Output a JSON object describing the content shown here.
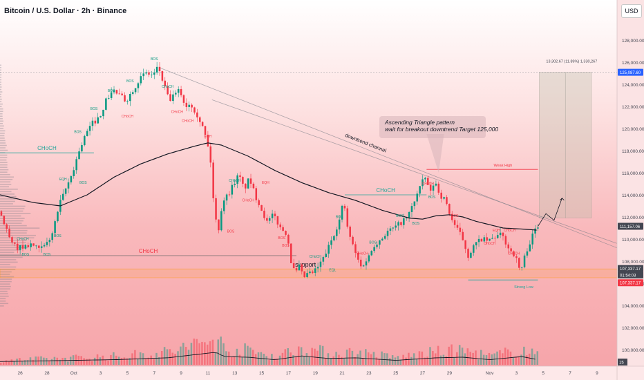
{
  "header": {
    "title": "Bitcoin / U.S. Dollar · 2h · Binance",
    "currency_button": "USD"
  },
  "annotation": {
    "line1": "Ascending Triangle pattern",
    "line2": "wait for breakout downtrend Target 125,000"
  },
  "measure_label": "13,302.67 (11.89%) 1,330,267",
  "colors": {
    "up": "#089981",
    "down": "#f23645",
    "ma": "#131722",
    "bos": "#089981",
    "choch": "#f23645",
    "level_green": "#26a69a",
    "level_red": "#f23645",
    "price_tag": "#434651",
    "target_tag": "#2962ff"
  },
  "chart_data": {
    "type": "candlestick",
    "title": "Bitcoin / U.S. Dollar · 2h · Binance",
    "ylim": [
      98500,
      130000
    ],
    "y_ticks": [
      100000,
      102000,
      104000,
      106000,
      108000,
      110000,
      112000,
      114000,
      116000,
      118000,
      120000,
      122000,
      124000,
      126000,
      128000
    ],
    "y_tick_labels": [
      "100,000.00",
      "102,000.00",
      "104,000.00",
      "106,000.00",
      "108,000.00",
      "110,000.00",
      "112,000.00",
      "114,000.00",
      "116,000.00",
      "118,000.00",
      "120,000.00",
      "122,000.00",
      "124,000.00",
      "126,000.00",
      "128,000.00"
    ],
    "x_labels": [
      "26",
      "28",
      "Oct",
      "3",
      "5",
      "7",
      "9",
      "11",
      "13",
      "15",
      "17",
      "19",
      "21",
      "23",
      "25",
      "27",
      "29",
      "Nov",
      "3",
      "5",
      "7",
      "9"
    ],
    "x_label_days": [
      -4,
      -2,
      0,
      2,
      4,
      6,
      8,
      10,
      12,
      14,
      16,
      18,
      20,
      22,
      24,
      26,
      28,
      31,
      33,
      35,
      37,
      39
    ],
    "x_day_range": [
      -5.5,
      40.5
    ],
    "price_anchors": [
      [
        -5.5,
        112500
      ],
      [
        -5,
        111200
      ],
      [
        -4.5,
        109500
      ],
      [
        -4,
        109200
      ],
      [
        -3,
        109500
      ],
      [
        -2.5,
        109000
      ],
      [
        -2,
        109400
      ],
      [
        -1.5,
        110500
      ],
      [
        -1,
        113000
      ],
      [
        -0.5,
        114500
      ],
      [
        0,
        116000
      ],
      [
        0.5,
        118000
      ],
      [
        1,
        119500
      ],
      [
        1.5,
        120500
      ],
      [
        2,
        121000
      ],
      [
        2.5,
        122500
      ],
      [
        3,
        123500
      ],
      [
        3.5,
        123000
      ],
      [
        4,
        122500
      ],
      [
        4.5,
        123500
      ],
      [
        5,
        124500
      ],
      [
        5.5,
        125000
      ],
      [
        6,
        124800
      ],
      [
        6.4,
        125600
      ],
      [
        6.8,
        124000
      ],
      [
        7.2,
        122500
      ],
      [
        7.6,
        123000
      ],
      [
        8,
        123500
      ],
      [
        8.4,
        122000
      ],
      [
        8.8,
        122300
      ],
      [
        9.2,
        121500
      ],
      [
        9.6,
        120500
      ],
      [
        10,
        119000
      ],
      [
        10.3,
        117000
      ],
      [
        10.6,
        112000
      ],
      [
        10.9,
        111000
      ],
      [
        11.2,
        113500
      ],
      [
        11.6,
        114000
      ],
      [
        12,
        115000
      ],
      [
        12.4,
        115800
      ],
      [
        12.8,
        114500
      ],
      [
        13.2,
        115500
      ],
      [
        13.6,
        114000
      ],
      [
        14,
        113000
      ],
      [
        14.5,
        111500
      ],
      [
        15,
        112200
      ],
      [
        15.5,
        111000
      ],
      [
        16,
        110500
      ],
      [
        16.3,
        108000
      ],
      [
        16.6,
        106800
      ],
      [
        16.9,
        107500
      ],
      [
        17.2,
        106500
      ],
      [
        17.5,
        106800
      ],
      [
        18,
        107000
      ],
      [
        18.5,
        107800
      ],
      [
        19,
        109000
      ],
      [
        19.5,
        110500
      ],
      [
        20,
        112000
      ],
      [
        20.2,
        113700
      ],
      [
        20.5,
        111000
      ],
      [
        21,
        109000
      ],
      [
        21.5,
        107500
      ],
      [
        22,
        108200
      ],
      [
        22.5,
        109500
      ],
      [
        23,
        110000
      ],
      [
        23.5,
        110700
      ],
      [
        24,
        111000
      ],
      [
        24.5,
        111500
      ],
      [
        25,
        112000
      ],
      [
        25.5,
        113500
      ],
      [
        26,
        115000
      ],
      [
        26.3,
        115500
      ],
      [
        26.7,
        114200
      ],
      [
        27,
        115300
      ],
      [
        27.4,
        114000
      ],
      [
        27.8,
        113500
      ],
      [
        28.2,
        112000
      ],
      [
        28.6,
        111000
      ],
      [
        29,
        110300
      ],
      [
        29.5,
        108500
      ],
      [
        30,
        109500
      ],
      [
        30.5,
        110000
      ],
      [
        31,
        109800
      ],
      [
        31.5,
        110200
      ],
      [
        32,
        110400
      ],
      [
        32.5,
        109200
      ],
      [
        33,
        108500
      ],
      [
        33.4,
        107000
      ],
      [
        33.8,
        108800
      ],
      [
        34.2,
        110000
      ],
      [
        34.6,
        111157
      ]
    ],
    "moving_average": [
      [
        -5.5,
        114000
      ],
      [
        -3,
        113300
      ],
      [
        -1,
        113000
      ],
      [
        1,
        114000
      ],
      [
        3,
        115600
      ],
      [
        5,
        116800
      ],
      [
        7,
        117700
      ],
      [
        9,
        118400
      ],
      [
        10,
        118700
      ],
      [
        11,
        118500
      ],
      [
        13,
        117500
      ],
      [
        15,
        116200
      ],
      [
        17,
        115100
      ],
      [
        19,
        114200
      ],
      [
        21,
        113500
      ],
      [
        23,
        112600
      ],
      [
        25,
        111900
      ],
      [
        26,
        111800
      ],
      [
        27,
        112100
      ],
      [
        28,
        112200
      ],
      [
        29,
        112000
      ],
      [
        30,
        111600
      ],
      [
        31,
        111300
      ],
      [
        32,
        111000
      ],
      [
        33.5,
        110900
      ],
      [
        34.6,
        110800
      ]
    ],
    "volume_anchors": [
      [
        -5.5,
        0.15
      ],
      [
        3,
        0.3
      ],
      [
        7,
        0.45
      ],
      [
        10.6,
        0.9
      ],
      [
        11.2,
        0.55
      ],
      [
        13,
        0.5
      ],
      [
        15,
        0.3
      ],
      [
        17,
        0.6
      ],
      [
        19,
        0.4
      ],
      [
        21,
        0.45
      ],
      [
        24,
        0.25
      ],
      [
        27,
        0.45
      ],
      [
        29,
        0.5
      ],
      [
        31,
        0.3
      ],
      [
        33.4,
        0.55
      ],
      [
        34.6,
        0.3
      ]
    ],
    "lines": [
      {
        "kind": "trend",
        "label": "downtrend channel",
        "from": [
          6.4,
          125500
        ],
        "to": [
          40.5,
          109200
        ]
      },
      {
        "kind": "trend",
        "label": "",
        "from": [
          10.3,
          122600
        ],
        "to": [
          40.5,
          109600
        ]
      },
      {
        "kind": "hline",
        "label": "",
        "y": 125087.6,
        "from": -5.5,
        "to": 40.5
      },
      {
        "kind": "level",
        "label": "CHoCH",
        "y": 117800,
        "from": -5.5,
        "to": 1.5,
        "color": "bos"
      },
      {
        "kind": "level",
        "label": "CHoCH",
        "y": 108500,
        "from": -5.5,
        "to": 16.6,
        "color": "neutral"
      },
      {
        "kind": "level",
        "label": "CHoCH",
        "y": 114000,
        "from": 20.2,
        "to": 26.3,
        "color": "bos"
      },
      {
        "kind": "level",
        "label": "Weak High",
        "y": 116300,
        "from": 26.3,
        "to": 34.6,
        "color": "choch"
      },
      {
        "kind": "level",
        "label": "Strong Low",
        "y": 106300,
        "from": 29.4,
        "to": 34.6,
        "color": "bos"
      }
    ],
    "zones": [
      {
        "label": "support",
        "y_top": 107300,
        "y_bottom": 106500,
        "from": -5.5,
        "to": 40.5
      }
    ],
    "target_box": {
      "from": 34.7,
      "to": 38.6,
      "y_top": 125087.6,
      "y_bottom": 111900
    },
    "smc_labels": [
      {
        "text": "BOS",
        "x": 6.0,
        "y": 126200,
        "c": "bos"
      },
      {
        "text": "BOS",
        "x": 4.2,
        "y": 124200,
        "c": "bos"
      },
      {
        "text": "BOS",
        "x": 2.8,
        "y": 123300,
        "c": "bos"
      },
      {
        "text": "BOS",
        "x": 1.5,
        "y": 121700,
        "c": "bos"
      },
      {
        "text": "BOS",
        "x": 0.3,
        "y": 119600,
        "c": "bos"
      },
      {
        "text": "EQH",
        "x": -0.8,
        "y": 115300,
        "c": "bos"
      },
      {
        "text": "BOS",
        "x": 0.7,
        "y": 115000,
        "c": "bos"
      },
      {
        "text": "CHoCH",
        "x": 7.0,
        "y": 123700,
        "c": "bos"
      },
      {
        "text": "CHoCH",
        "x": 7.7,
        "y": 121400,
        "c": "choch"
      },
      {
        "text": "CHoCH",
        "x": 4.0,
        "y": 121000,
        "c": "choch"
      },
      {
        "text": "CHoCH",
        "x": 8.5,
        "y": 120600,
        "c": "choch"
      },
      {
        "text": "EQH",
        "x": 10.0,
        "y": 119200,
        "c": "choch"
      },
      {
        "text": "CHoCH",
        "x": -3.8,
        "y": 109900,
        "c": "bos"
      },
      {
        "text": "BOS",
        "x": -1.2,
        "y": 110200,
        "c": "bos"
      },
      {
        "text": "BOS",
        "x": -3.6,
        "y": 108500,
        "c": "bos"
      },
      {
        "text": "BOS",
        "x": -2.0,
        "y": 108500,
        "c": "bos"
      },
      {
        "text": "CHoCH",
        "x": 12.0,
        "y": 115200,
        "c": "bos"
      },
      {
        "text": "CHoCH",
        "x": 13.0,
        "y": 113400,
        "c": "choch"
      },
      {
        "text": "EQH",
        "x": 14.3,
        "y": 115000,
        "c": "choch"
      },
      {
        "text": "BOS",
        "x": 11.7,
        "y": 110600,
        "c": "choch"
      },
      {
        "text": "BOS",
        "x": 15.5,
        "y": 110000,
        "c": "choch"
      },
      {
        "text": "BOS",
        "x": 15.8,
        "y": 109300,
        "c": "choch"
      },
      {
        "text": "CHoCH",
        "x": 18.0,
        "y": 108300,
        "c": "bos"
      },
      {
        "text": "EQL",
        "x": 19.3,
        "y": 107100,
        "c": "bos"
      },
      {
        "text": "BOS",
        "x": 19.8,
        "y": 111900,
        "c": "bos"
      },
      {
        "text": "BOS",
        "x": 22.3,
        "y": 109600,
        "c": "bos"
      },
      {
        "text": "BOS",
        "x": 24.3,
        "y": 112000,
        "c": "bos"
      },
      {
        "text": "BOS",
        "x": 25.5,
        "y": 111300,
        "c": "bos"
      },
      {
        "text": "CHoCH",
        "x": 21.5,
        "y": 108600,
        "c": "choch"
      },
      {
        "text": "BOS",
        "x": 26.7,
        "y": 113700,
        "c": "bos"
      },
      {
        "text": "CHoCH",
        "x": 26.4,
        "y": 114900,
        "c": "choch"
      },
      {
        "text": "BOS",
        "x": 28.4,
        "y": 112000,
        "c": "choch"
      },
      {
        "text": "EQH",
        "x": 31.5,
        "y": 110700,
        "c": "choch"
      },
      {
        "text": "CHoCH",
        "x": 32.5,
        "y": 110700,
        "c": "choch"
      },
      {
        "text": "CHoCH",
        "x": 31.0,
        "y": 109500,
        "c": "choch"
      },
      {
        "text": "CHoCH",
        "x": 32.8,
        "y": 108600,
        "c": "choch"
      }
    ],
    "projection": [
      [
        34.6,
        111157
      ],
      [
        35.2,
        112300
      ],
      [
        35.8,
        111700
      ],
      [
        36.4,
        113700
      ]
    ],
    "price_tags": [
      {
        "label": "125,087.60",
        "y": 125087.6,
        "c": "target_tag"
      },
      {
        "label": "111,157.06",
        "y": 111157.06,
        "c": "price_tag"
      },
      {
        "label": "107,337.17",
        "y": 107337.17,
        "c": "price_tag"
      },
      {
        "label": "01:54:03",
        "y": 106750,
        "c": "price_tag"
      },
      {
        "label": "107,337.17",
        "y": 106050,
        "c": "level_red"
      }
    ],
    "volume_tag": "15",
    "volume_profile": true
  }
}
